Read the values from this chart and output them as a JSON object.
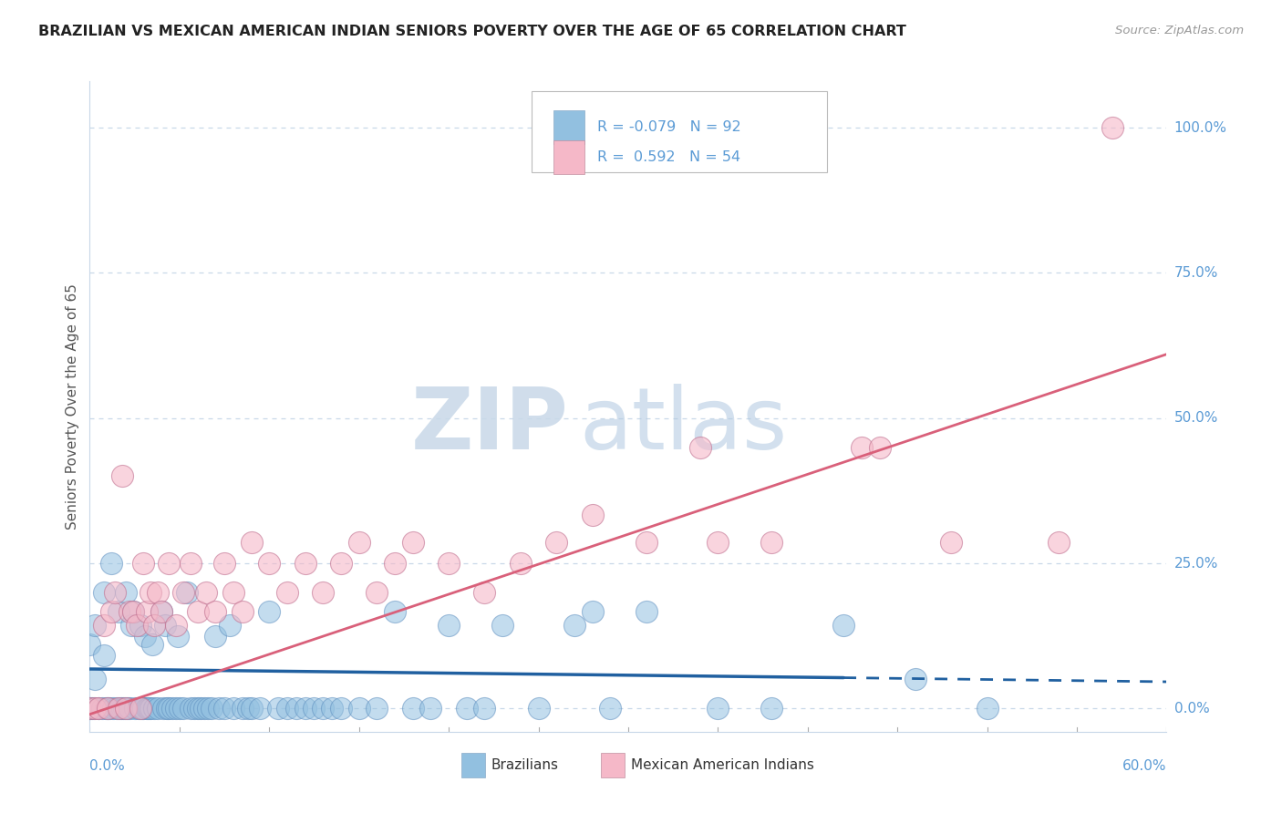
{
  "title": "BRAZILIAN VS MEXICAN AMERICAN INDIAN SENIORS POVERTY OVER THE AGE OF 65 CORRELATION CHART",
  "source": "Source: ZipAtlas.com",
  "ylabel": "Seniors Poverty Over the Age of 65",
  "ytick_labels": [
    "0.0%",
    "25.0%",
    "50.0%",
    "75.0%",
    "100.0%"
  ],
  "ytick_values": [
    0.0,
    0.25,
    0.5,
    0.75,
    1.0
  ],
  "xlim": [
    0.0,
    0.6
  ],
  "ylim": [
    -0.04,
    1.08
  ],
  "legend_blue_label": "Brazilians",
  "legend_pink_label": "Mexican American Indians",
  "R_blue": -0.079,
  "N_blue": 92,
  "R_pink": 0.592,
  "N_pink": 54,
  "blue_color": "#92C0E0",
  "pink_color": "#F5B8C8",
  "blue_line_color": "#2060A0",
  "pink_line_color": "#D9607A",
  "blue_scatter": [
    [
      0.0,
      0.111
    ],
    [
      0.0,
      0.0
    ],
    [
      0.001,
      0.0
    ],
    [
      0.002,
      0.0
    ],
    [
      0.003,
      0.05
    ],
    [
      0.003,
      0.143
    ],
    [
      0.005,
      0.0
    ],
    [
      0.007,
      0.0
    ],
    [
      0.008,
      0.2
    ],
    [
      0.008,
      0.091
    ],
    [
      0.009,
      0.0
    ],
    [
      0.01,
      0.0
    ],
    [
      0.011,
      0.0
    ],
    [
      0.012,
      0.25
    ],
    [
      0.013,
      0.0
    ],
    [
      0.015,
      0.0
    ],
    [
      0.016,
      0.167
    ],
    [
      0.017,
      0.0
    ],
    [
      0.018,
      0.0
    ],
    [
      0.019,
      0.0
    ],
    [
      0.02,
      0.2
    ],
    [
      0.021,
      0.0
    ],
    [
      0.022,
      0.0
    ],
    [
      0.023,
      0.143
    ],
    [
      0.024,
      0.167
    ],
    [
      0.025,
      0.0
    ],
    [
      0.027,
      0.0
    ],
    [
      0.028,
      0.143
    ],
    [
      0.029,
      0.0
    ],
    [
      0.03,
      0.0
    ],
    [
      0.031,
      0.125
    ],
    [
      0.032,
      0.0
    ],
    [
      0.033,
      0.0
    ],
    [
      0.034,
      0.0
    ],
    [
      0.035,
      0.111
    ],
    [
      0.036,
      0.0
    ],
    [
      0.038,
      0.0
    ],
    [
      0.04,
      0.167
    ],
    [
      0.041,
      0.0
    ],
    [
      0.042,
      0.143
    ],
    [
      0.043,
      0.0
    ],
    [
      0.044,
      0.0
    ],
    [
      0.046,
      0.0
    ],
    [
      0.048,
      0.0
    ],
    [
      0.049,
      0.125
    ],
    [
      0.05,
      0.0
    ],
    [
      0.052,
      0.0
    ],
    [
      0.054,
      0.2
    ],
    [
      0.056,
      0.0
    ],
    [
      0.058,
      0.0
    ],
    [
      0.06,
      0.0
    ],
    [
      0.062,
      0.0
    ],
    [
      0.064,
      0.0
    ],
    [
      0.066,
      0.0
    ],
    [
      0.068,
      0.0
    ],
    [
      0.07,
      0.125
    ],
    [
      0.072,
      0.0
    ],
    [
      0.075,
      0.0
    ],
    [
      0.078,
      0.143
    ],
    [
      0.08,
      0.0
    ],
    [
      0.085,
      0.0
    ],
    [
      0.088,
      0.0
    ],
    [
      0.09,
      0.0
    ],
    [
      0.095,
      0.0
    ],
    [
      0.1,
      0.167
    ],
    [
      0.105,
      0.0
    ],
    [
      0.11,
      0.0
    ],
    [
      0.115,
      0.0
    ],
    [
      0.12,
      0.0
    ],
    [
      0.125,
      0.0
    ],
    [
      0.13,
      0.0
    ],
    [
      0.135,
      0.0
    ],
    [
      0.14,
      0.0
    ],
    [
      0.15,
      0.0
    ],
    [
      0.16,
      0.0
    ],
    [
      0.17,
      0.167
    ],
    [
      0.18,
      0.0
    ],
    [
      0.19,
      0.0
    ],
    [
      0.2,
      0.143
    ],
    [
      0.21,
      0.0
    ],
    [
      0.22,
      0.0
    ],
    [
      0.23,
      0.143
    ],
    [
      0.25,
      0.0
    ],
    [
      0.27,
      0.143
    ],
    [
      0.29,
      0.0
    ],
    [
      0.31,
      0.167
    ],
    [
      0.35,
      0.0
    ],
    [
      0.38,
      0.0
    ],
    [
      0.42,
      0.143
    ],
    [
      0.46,
      0.05
    ],
    [
      0.5,
      0.0
    ],
    [
      0.28,
      0.167
    ]
  ],
  "pink_scatter": [
    [
      0.0,
      0.0
    ],
    [
      0.003,
      0.0
    ],
    [
      0.005,
      0.0
    ],
    [
      0.008,
      0.143
    ],
    [
      0.01,
      0.0
    ],
    [
      0.012,
      0.167
    ],
    [
      0.014,
      0.2
    ],
    [
      0.016,
      0.0
    ],
    [
      0.018,
      0.4
    ],
    [
      0.02,
      0.0
    ],
    [
      0.022,
      0.167
    ],
    [
      0.024,
      0.167
    ],
    [
      0.026,
      0.143
    ],
    [
      0.028,
      0.0
    ],
    [
      0.03,
      0.25
    ],
    [
      0.032,
      0.167
    ],
    [
      0.034,
      0.2
    ],
    [
      0.036,
      0.143
    ],
    [
      0.038,
      0.2
    ],
    [
      0.04,
      0.167
    ],
    [
      0.044,
      0.25
    ],
    [
      0.048,
      0.143
    ],
    [
      0.052,
      0.2
    ],
    [
      0.056,
      0.25
    ],
    [
      0.06,
      0.167
    ],
    [
      0.065,
      0.2
    ],
    [
      0.07,
      0.167
    ],
    [
      0.075,
      0.25
    ],
    [
      0.08,
      0.2
    ],
    [
      0.085,
      0.167
    ],
    [
      0.09,
      0.286
    ],
    [
      0.1,
      0.25
    ],
    [
      0.11,
      0.2
    ],
    [
      0.12,
      0.25
    ],
    [
      0.13,
      0.2
    ],
    [
      0.14,
      0.25
    ],
    [
      0.15,
      0.286
    ],
    [
      0.16,
      0.2
    ],
    [
      0.17,
      0.25
    ],
    [
      0.18,
      0.286
    ],
    [
      0.2,
      0.25
    ],
    [
      0.22,
      0.2
    ],
    [
      0.24,
      0.25
    ],
    [
      0.26,
      0.286
    ],
    [
      0.28,
      0.333
    ],
    [
      0.31,
      0.286
    ],
    [
      0.34,
      0.45
    ],
    [
      0.38,
      0.286
    ],
    [
      0.43,
      0.45
    ],
    [
      0.48,
      0.286
    ],
    [
      0.54,
      0.286
    ],
    [
      0.57,
      1.0
    ],
    [
      0.44,
      0.45
    ],
    [
      0.35,
      0.286
    ]
  ],
  "blue_line_x0": 0.0,
  "blue_line_y0": 0.068,
  "blue_line_x1_solid": 0.42,
  "blue_line_y1_solid": 0.053,
  "blue_line_x1_dash": 0.6,
  "blue_line_y1_dash": 0.046,
  "pink_line_x0": 0.0,
  "pink_line_y0": -0.01,
  "pink_line_x1": 0.6,
  "pink_line_y1": 0.61,
  "background_color": "#FFFFFF",
  "grid_color": "#C8D8E8",
  "title_color": "#222222",
  "ylabel_color": "#555555",
  "tick_label_color": "#5B9BD5",
  "watermark_zip_color": "#D8E8F0",
  "watermark_atlas_color": "#B8D0E8"
}
